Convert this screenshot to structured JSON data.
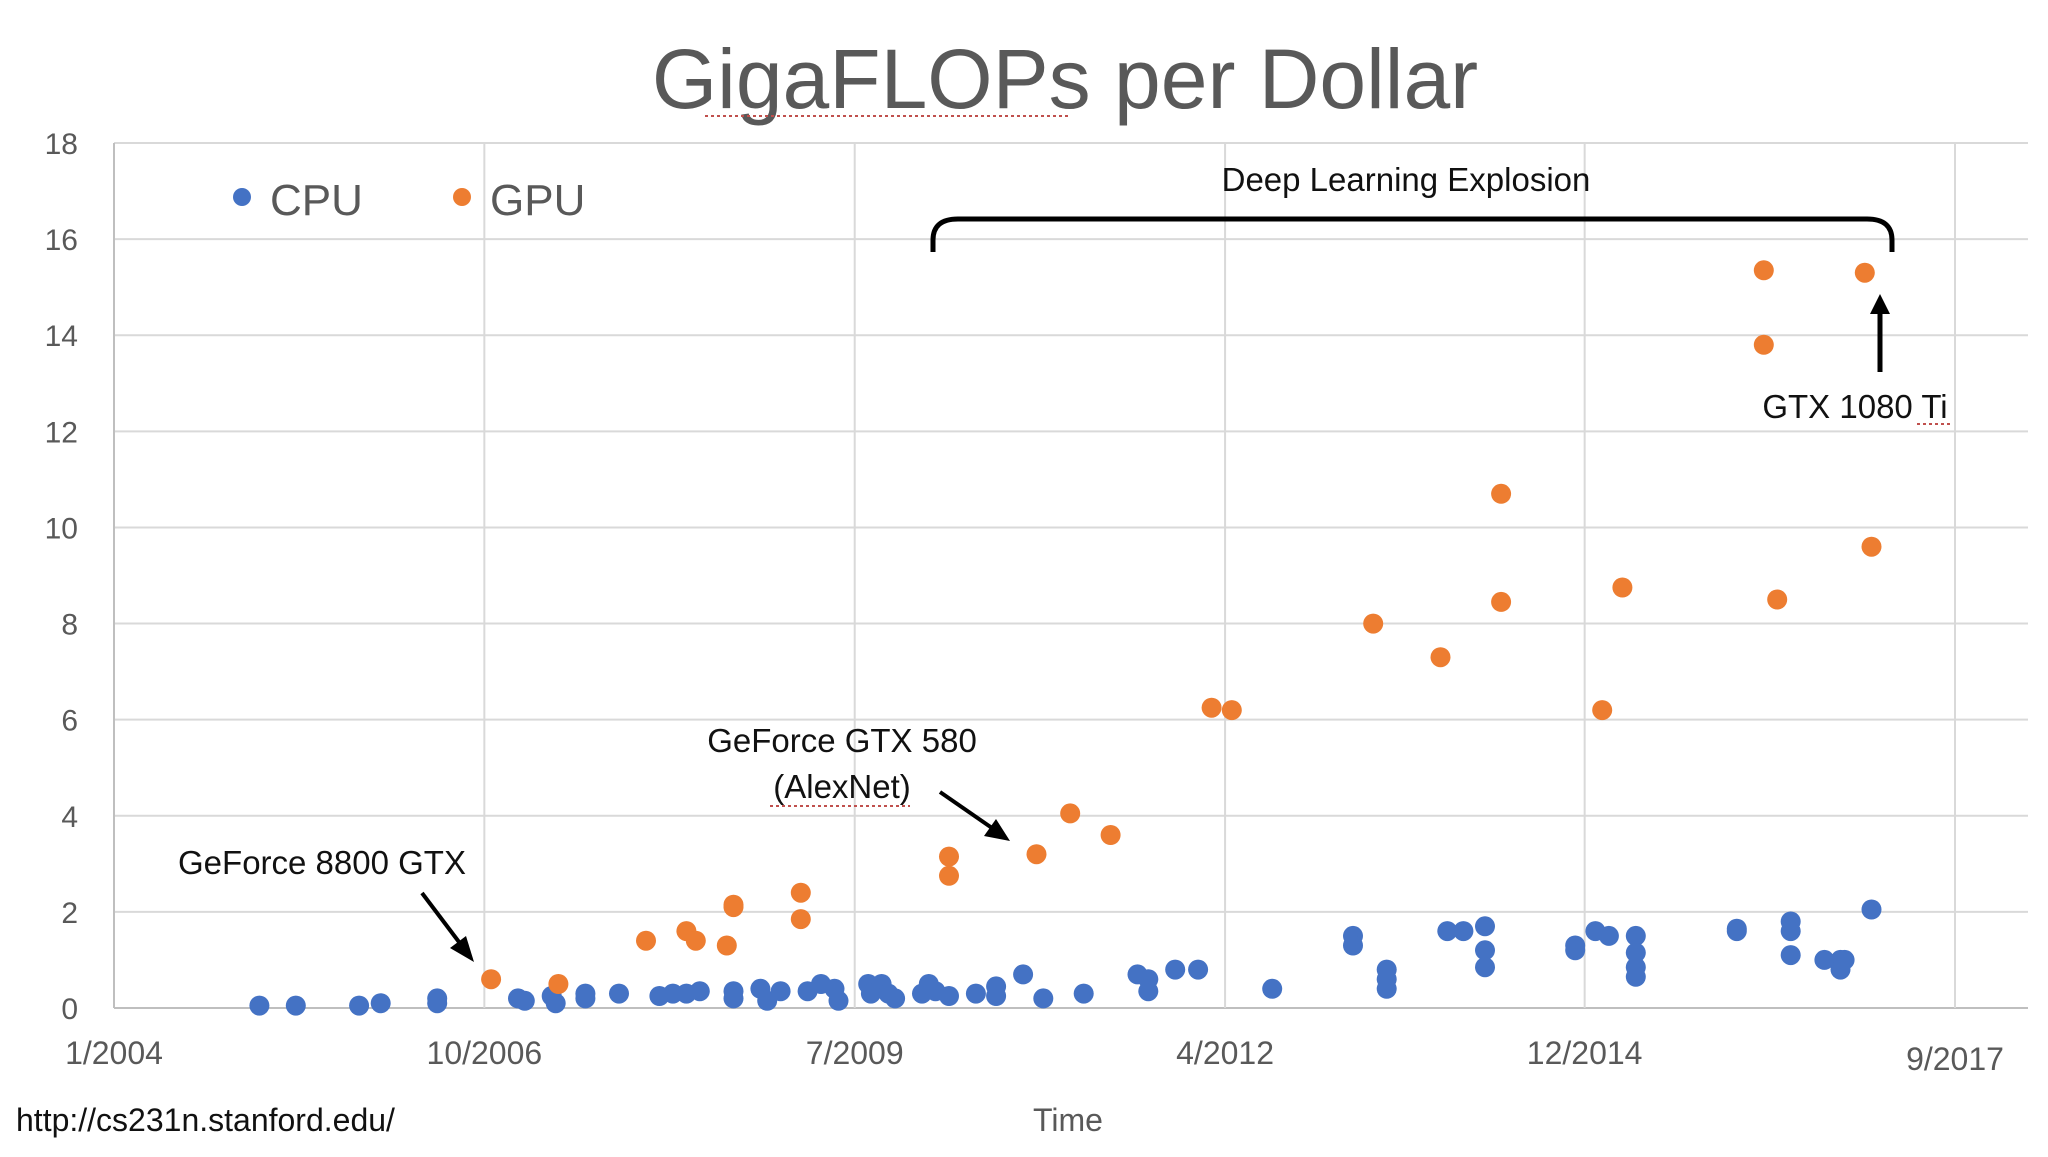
{
  "chart_data": {
    "type": "scatter",
    "title": "GigaFLOPs per Dollar",
    "xlabel": "Time",
    "ylabel": "",
    "ylim": [
      0,
      18
    ],
    "yticks": [
      0,
      2,
      4,
      6,
      8,
      10,
      12,
      14,
      16,
      18
    ],
    "xlim": [
      2004.0,
      2017.67
    ],
    "xticks": [
      {
        "label": "1/2004",
        "value": 2004.0
      },
      {
        "label": "10/2006",
        "value": 2006.75
      },
      {
        "label": "7/2009",
        "value": 2009.5
      },
      {
        "label": "4/2012",
        "value": 2012.25
      },
      {
        "label": "12/2014",
        "value": 2014.92
      },
      {
        "label": "9/2017",
        "value": 2017.67
      }
    ],
    "grid": true,
    "legend_position": "top-left",
    "series": [
      {
        "name": "CPU",
        "color": "#4472C4",
        "points": [
          [
            2005.08,
            0.05
          ],
          [
            2005.35,
            0.05
          ],
          [
            2005.82,
            0.05
          ],
          [
            2005.98,
            0.1
          ],
          [
            2006.4,
            0.1
          ],
          [
            2006.4,
            0.2
          ],
          [
            2007.0,
            0.2
          ],
          [
            2007.05,
            0.15
          ],
          [
            2007.25,
            0.25
          ],
          [
            2007.28,
            0.1
          ],
          [
            2007.5,
            0.3
          ],
          [
            2007.5,
            0.2
          ],
          [
            2007.75,
            0.3
          ],
          [
            2008.05,
            0.25
          ],
          [
            2008.15,
            0.3
          ],
          [
            2008.25,
            0.3
          ],
          [
            2008.35,
            0.35
          ],
          [
            2008.6,
            0.2
          ],
          [
            2008.6,
            0.35
          ],
          [
            2008.8,
            0.4
          ],
          [
            2008.85,
            0.15
          ],
          [
            2008.95,
            0.35
          ],
          [
            2009.15,
            0.35
          ],
          [
            2009.25,
            0.5
          ],
          [
            2009.35,
            0.4
          ],
          [
            2009.38,
            0.15
          ],
          [
            2009.6,
            0.5
          ],
          [
            2009.7,
            0.5
          ],
          [
            2009.62,
            0.3
          ],
          [
            2009.75,
            0.3
          ],
          [
            2009.8,
            0.2
          ],
          [
            2010.0,
            0.3
          ],
          [
            2010.05,
            0.5
          ],
          [
            2010.1,
            0.35
          ],
          [
            2010.2,
            0.25
          ],
          [
            2010.4,
            0.3
          ],
          [
            2010.55,
            0.25
          ],
          [
            2010.55,
            0.45
          ],
          [
            2010.75,
            0.7
          ],
          [
            2010.9,
            0.2
          ],
          [
            2011.2,
            0.3
          ],
          [
            2011.6,
            0.7
          ],
          [
            2011.68,
            0.6
          ],
          [
            2011.68,
            0.35
          ],
          [
            2011.88,
            0.8
          ],
          [
            2012.05,
            0.8
          ],
          [
            2012.6,
            0.4
          ],
          [
            2013.2,
            1.5
          ],
          [
            2013.2,
            1.3
          ],
          [
            2013.45,
            0.8
          ],
          [
            2013.45,
            0.6
          ],
          [
            2013.45,
            0.4
          ],
          [
            2013.9,
            1.6
          ],
          [
            2014.02,
            1.6
          ],
          [
            2014.18,
            1.7
          ],
          [
            2014.18,
            1.2
          ],
          [
            2014.18,
            0.85
          ],
          [
            2014.85,
            1.2
          ],
          [
            2014.85,
            1.3
          ],
          [
            2015.0,
            1.6
          ],
          [
            2015.1,
            1.5
          ],
          [
            2015.3,
            1.5
          ],
          [
            2015.3,
            1.15
          ],
          [
            2015.3,
            0.85
          ],
          [
            2015.3,
            0.65
          ],
          [
            2016.05,
            1.6
          ],
          [
            2016.05,
            1.65
          ],
          [
            2016.45,
            1.8
          ],
          [
            2016.45,
            1.6
          ],
          [
            2016.45,
            1.1
          ],
          [
            2016.7,
            1.0
          ],
          [
            2016.82,
            1.0
          ],
          [
            2016.82,
            0.8
          ],
          [
            2016.85,
            1.0
          ],
          [
            2017.05,
            2.05
          ]
        ]
      },
      {
        "name": "GPU",
        "color": "#ED7D31",
        "points": [
          [
            2006.8,
            0.6
          ],
          [
            2007.3,
            0.5
          ],
          [
            2007.95,
            1.4
          ],
          [
            2008.25,
            1.6
          ],
          [
            2008.32,
            1.4
          ],
          [
            2008.55,
            1.3
          ],
          [
            2008.6,
            2.15
          ],
          [
            2008.6,
            2.1
          ],
          [
            2009.1,
            2.4
          ],
          [
            2009.1,
            1.85
          ],
          [
            2010.2,
            3.15
          ],
          [
            2010.2,
            2.75
          ],
          [
            2010.85,
            3.2
          ],
          [
            2011.1,
            4.05
          ],
          [
            2011.4,
            3.6
          ],
          [
            2012.15,
            6.25
          ],
          [
            2012.3,
            6.2
          ],
          [
            2013.35,
            8.0
          ],
          [
            2013.85,
            7.3
          ],
          [
            2014.3,
            10.7
          ],
          [
            2014.3,
            8.45
          ],
          [
            2015.05,
            6.2
          ],
          [
            2015.2,
            8.75
          ],
          [
            2016.25,
            15.35
          ],
          [
            2016.25,
            13.8
          ],
          [
            2016.35,
            8.5
          ],
          [
            2017.0,
            15.3
          ],
          [
            2017.05,
            9.6
          ]
        ]
      }
    ],
    "legend": [
      {
        "label": "CPU",
        "color": "#4472C4"
      },
      {
        "label": "GPU",
        "color": "#ED7D31"
      }
    ],
    "annotations": {
      "bracket_label": "Deep Learning Explosion",
      "gtx8800_label": "GeForce 8800 GTX",
      "gtx580_line1": "GeForce GTX 580",
      "gtx580_line2": "(AlexNet)",
      "gtx1080_label": "GTX 1080 Ti"
    }
  },
  "source_url": "http://cs231n.stanford.edu/"
}
